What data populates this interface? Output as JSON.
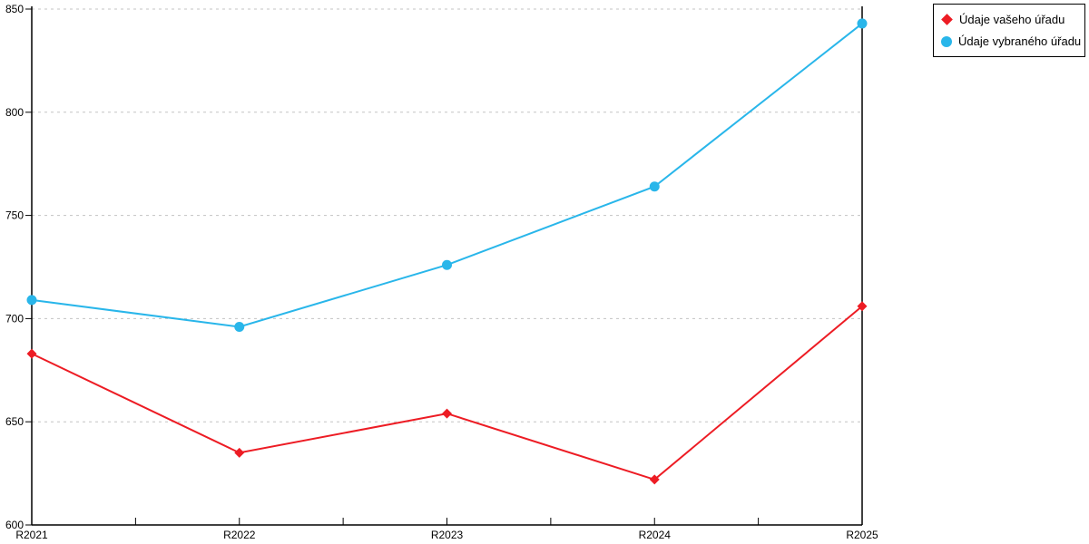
{
  "chart_data": {
    "type": "line",
    "title": "",
    "xlabel": "",
    "ylabel": "",
    "categories": [
      "R2021",
      "R2022",
      "R2023",
      "R2024",
      "R2025"
    ],
    "series": [
      {
        "name": "Údaje vašeho úřadu",
        "values": [
          683,
          635,
          654,
          622,
          706
        ],
        "color": "#ed1c24",
        "marker": "diamond"
      },
      {
        "name": "Údaje vybraného úřadu",
        "values": [
          709,
          696,
          726,
          764,
          843
        ],
        "color": "#29b6ea",
        "marker": "circle"
      }
    ],
    "ylim": [
      600,
      850
    ],
    "yticks": [
      600,
      650,
      700,
      750,
      800,
      850
    ],
    "grid": "horizontal-dashed",
    "gridline_color": "#c3c3c3",
    "axis_color": "#000000",
    "legend_position": "top-right"
  }
}
